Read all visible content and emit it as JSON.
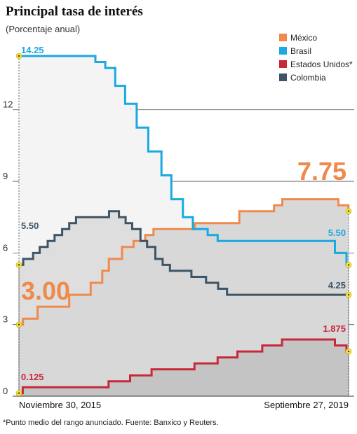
{
  "title": "Principal tasa de interés",
  "subtitle": "(Porcentaje anual)",
  "footnote": "*Punto medio del rango anunciado. Fuente: Banxico y Reuters.",
  "chart_data": {
    "type": "line",
    "title": "Principal tasa de interés",
    "subtitle": "(Porcentaje anual)",
    "ylim": [
      0,
      14.25
    ],
    "yticks": [
      0,
      3,
      6,
      9,
      12
    ],
    "x_start_label": "Noviembre 30, 2015",
    "x_end_label": "Septiembre 27, 2019",
    "xlim": [
      "2015-11-30",
      "2019-09-27"
    ],
    "grid": true,
    "legend_position": "top-right",
    "series": [
      {
        "name": "México",
        "color": "#ef8a4c",
        "start_label": "3.00",
        "end_label": "7.75",
        "x": [
          "2015-11-30",
          "2015-12-17",
          "2016-02-17",
          "2016-06-30",
          "2016-07-15",
          "2016-09-29",
          "2016-11-17",
          "2016-12-15",
          "2017-02-09",
          "2017-03-30",
          "2017-05-18",
          "2017-06-22",
          "2017-12-14",
          "2018-06-21",
          "2018-11-15",
          "2018-12-20",
          "2019-08-15",
          "2019-09-26"
        ],
        "values": [
          3.0,
          3.25,
          3.75,
          4.25,
          4.25,
          4.75,
          5.25,
          5.75,
          6.25,
          6.5,
          6.75,
          7.0,
          7.25,
          7.75,
          8.0,
          8.25,
          8.0,
          7.75
        ]
      },
      {
        "name": "Brasil",
        "color": "#1aa9e0",
        "start_label": "14.25",
        "end_label": "5.50",
        "x": [
          "2015-11-30",
          "2016-10-19",
          "2016-11-30",
          "2017-01-11",
          "2017-02-22",
          "2017-04-12",
          "2017-05-31",
          "2017-07-26",
          "2017-09-06",
          "2017-10-25",
          "2017-12-06",
          "2018-02-07",
          "2018-03-21",
          "2019-07-31",
          "2019-09-18"
        ],
        "values": [
          14.25,
          14.0,
          13.75,
          13.0,
          12.25,
          11.25,
          10.25,
          9.25,
          8.25,
          7.5,
          7.0,
          6.75,
          6.5,
          6.0,
          5.5
        ]
      },
      {
        "name": "Estados Unidos*",
        "color": "#c8283a",
        "start_label": "0.125",
        "end_label": "1.875",
        "x": [
          "2015-11-30",
          "2015-12-16",
          "2016-12-14",
          "2017-03-15",
          "2017-06-14",
          "2017-12-13",
          "2018-03-21",
          "2018-06-13",
          "2018-09-26",
          "2018-12-19",
          "2019-07-31",
          "2019-09-18"
        ],
        "values": [
          0.125,
          0.375,
          0.625,
          0.875,
          1.125,
          1.375,
          1.625,
          1.875,
          2.125,
          2.375,
          2.125,
          1.875
        ]
      },
      {
        "name": "Colombia",
        "color": "#3d5566",
        "start_label": "5.50",
        "end_label": "4.25",
        "x": [
          "2015-11-30",
          "2015-12-18",
          "2016-01-29",
          "2016-02-26",
          "2016-03-31",
          "2016-04-29",
          "2016-05-31",
          "2016-06-30",
          "2016-07-29",
          "2016-12-16",
          "2017-01-27",
          "2017-02-24",
          "2017-03-24",
          "2017-04-28",
          "2017-05-26",
          "2017-06-30",
          "2017-07-31",
          "2017-08-31",
          "2017-11-30",
          "2018-01-31",
          "2018-03-23",
          "2018-04-30"
        ],
        "values": [
          5.5,
          5.75,
          6.0,
          6.25,
          6.5,
          6.75,
          7.0,
          7.25,
          7.5,
          7.75,
          7.5,
          7.25,
          7.0,
          6.5,
          6.25,
          5.75,
          5.5,
          5.25,
          5.0,
          4.75,
          4.5,
          4.25
        ]
      }
    ]
  }
}
